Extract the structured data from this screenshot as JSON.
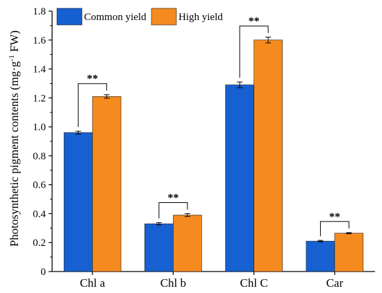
{
  "chart_data": {
    "type": "bar",
    "categories": [
      "Chl a",
      "Chl b",
      "Chl C",
      "Car"
    ],
    "series": [
      {
        "name": "Common yield",
        "color": "#1660d1",
        "values": [
          0.96,
          0.33,
          1.29,
          0.21
        ],
        "errors": [
          0.01,
          0.008,
          0.02,
          0.005
        ]
      },
      {
        "name": "High yield",
        "color": "#f58a1f",
        "values": [
          1.21,
          0.39,
          1.6,
          0.265
        ],
        "errors": [
          0.012,
          0.01,
          0.02,
          0.004
        ]
      }
    ],
    "significance": [
      "**",
      "**",
      "**",
      "**"
    ],
    "ylabel_main": "Photosynthetic pigment contents (mg·g",
    "ylabel_sup": "-1",
    "ylabel_tail": " FW)",
    "xlabel": "",
    "ylim": [
      0,
      1.8
    ],
    "yticks": [
      "0",
      "0.2",
      "0.4",
      "0.6",
      "0.8",
      "1.0",
      "1.2",
      "1.4",
      "1.6",
      "1.8"
    ],
    "legend_position": "top-left",
    "grid": false
  }
}
